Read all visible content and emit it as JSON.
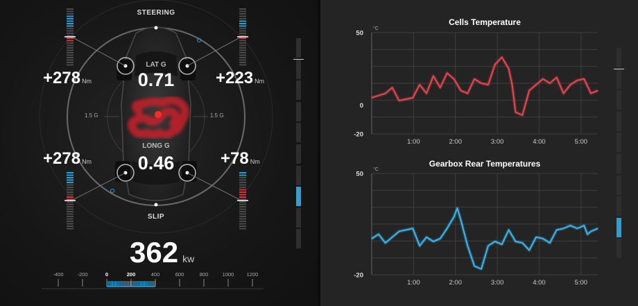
{
  "vehicle": {
    "labels": {
      "steering": "STEERING",
      "slip": "SLIP"
    },
    "lat_g": {
      "label": "LAT G",
      "value": "0.71"
    },
    "long_g": {
      "label": "LONG G",
      "value": "0.46"
    },
    "g_ring_left": "1.5 G",
    "g_ring_right": "1.5 G",
    "torque": {
      "front_left": {
        "value": "+278",
        "unit": "Nm"
      },
      "front_right": {
        "value": "+223",
        "unit": "Nm"
      },
      "rear_left": {
        "value": "+278",
        "unit": "Nm"
      },
      "rear_right": {
        "value": "+78",
        "unit": "Nm"
      }
    },
    "power": {
      "value": "362",
      "unit": "kw"
    },
    "power_scale": {
      "ticks": [
        "-400",
        "-200",
        "0",
        "200",
        "400",
        "600",
        "800",
        "1000",
        "1200"
      ],
      "range": [
        -400,
        1200
      ],
      "fill_range": [
        0,
        400
      ]
    },
    "colors": {
      "accent_blue": "#2a9fd8",
      "accent_red": "#e0303a",
      "slip_trail": "#d0202a"
    }
  },
  "charts": {
    "colors": {
      "cells": "#e8454f",
      "gearbox": "#3ab6ee"
    },
    "chart_data": [
      {
        "type": "line",
        "title": "Cells Temperature",
        "unit": "°C",
        "ylim": [
          -20,
          50
        ],
        "yticks": [
          "50",
          "0",
          "-20"
        ],
        "xticks": [
          "1:00",
          "2:00",
          "3:00",
          "4:00",
          "5:00"
        ],
        "xlim": [
          0,
          330
        ],
        "grid": true,
        "series": [
          {
            "x": [
              0,
              20,
              30,
              40,
              60,
              70,
              80,
              90,
              100,
              110,
              120,
              130,
              140,
              150,
              160,
              170,
              180,
              190,
              200,
              205,
              210,
              220,
              230,
              240,
              250,
              260,
              270,
              280,
              290,
              300,
              310,
              315,
              320,
              330
            ],
            "y": [
              5,
              8,
              12,
              3,
              5,
              14,
              8,
              20,
              12,
              22,
              18,
              10,
              8,
              18,
              15,
              14,
              28,
              33,
              25,
              14,
              -5,
              -7,
              10,
              14,
              18,
              15,
              19,
              8,
              14,
              17,
              18,
              13,
              8,
              10
            ]
          }
        ]
      },
      {
        "type": "line",
        "title": "Gearbox Rear Temperatures",
        "unit": "°C",
        "ylim": [
          -20,
          50
        ],
        "yticks": [
          "50",
          "-20"
        ],
        "xticks": [
          "1:00",
          "2:00",
          "3:00",
          "4:00",
          "5:00"
        ],
        "xlim": [
          0,
          330
        ],
        "grid": true,
        "series": [
          {
            "x": [
              0,
              10,
              20,
              30,
              40,
              60,
              70,
              80,
              90,
              100,
              110,
              120,
              125,
              130,
              140,
              150,
              160,
              170,
              180,
              190,
              200,
              210,
              220,
              230,
              240,
              250,
              260,
              270,
              280,
              290,
              300,
              310,
              315,
              320,
              330
            ],
            "y": [
              5,
              8,
              2,
              6,
              10,
              12,
              0,
              6,
              3,
              5,
              12,
              20,
              26,
              18,
              0,
              -14,
              -16,
              0,
              3,
              1,
              11,
              3,
              2,
              -3,
              6,
              5,
              2,
              11,
              12,
              14,
              12,
              14,
              8,
              10,
              12
            ]
          }
        ]
      }
    ]
  }
}
